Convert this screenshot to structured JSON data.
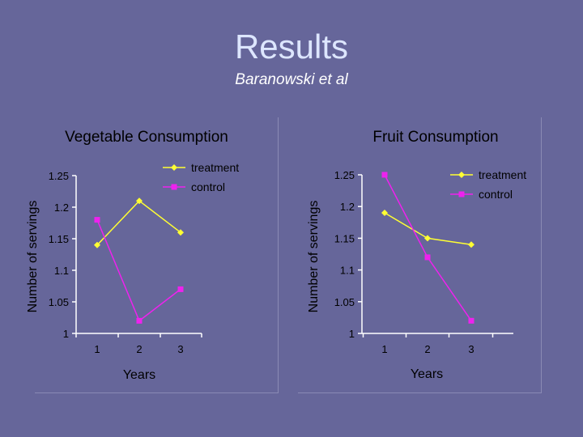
{
  "slide": {
    "title": "Results",
    "subtitle": "Baranowski et al"
  },
  "colors": {
    "background": "#66669a",
    "treatment": "#ffff33",
    "control": "#ee22ee",
    "axis": "#ffffff",
    "text": "#000000"
  },
  "chart_data": [
    {
      "type": "line",
      "title": "Vegetable Consumption",
      "xlabel": "Years",
      "ylabel": "Number of servings",
      "categories": [
        "1",
        "2",
        "3"
      ],
      "ylim": [
        1,
        1.25
      ],
      "yticks": [
        "1",
        "1.05",
        "1.1",
        "1.15",
        "1.2",
        "1.25"
      ],
      "legend": "top-right",
      "series": [
        {
          "name": "treatment",
          "values": [
            1.14,
            1.21,
            1.16
          ]
        },
        {
          "name": "control",
          "values": [
            1.18,
            1.02,
            1.07
          ]
        }
      ]
    },
    {
      "type": "line",
      "title": "Fruit Consumption",
      "xlabel": "Years",
      "ylabel": "Number of servings",
      "categories": [
        "1",
        "2",
        "3"
      ],
      "ylim": [
        1,
        1.25
      ],
      "yticks": [
        "1",
        "1.05",
        "1.1",
        "1.15",
        "1.2",
        "1.25"
      ],
      "legend": "top-right",
      "series": [
        {
          "name": "treatment",
          "values": [
            1.19,
            1.15,
            1.14
          ]
        },
        {
          "name": "control",
          "values": [
            1.25,
            1.12,
            1.02
          ]
        }
      ]
    }
  ]
}
